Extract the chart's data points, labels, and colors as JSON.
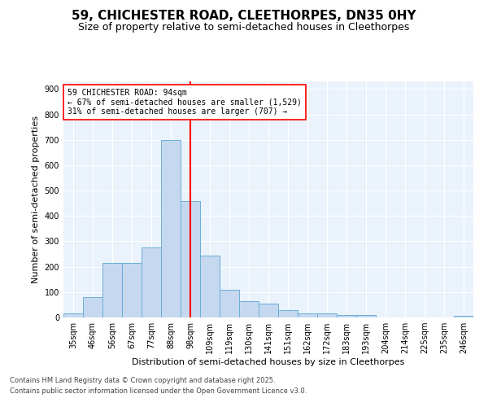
{
  "title1": "59, CHICHESTER ROAD, CLEETHORPES, DN35 0HY",
  "title2": "Size of property relative to semi-detached houses in Cleethorpes",
  "xlabel": "Distribution of semi-detached houses by size in Cleethorpes",
  "ylabel": "Number of semi-detached properties",
  "bin_labels": [
    "35sqm",
    "46sqm",
    "56sqm",
    "67sqm",
    "77sqm",
    "88sqm",
    "98sqm",
    "109sqm",
    "119sqm",
    "130sqm",
    "141sqm",
    "151sqm",
    "162sqm",
    "172sqm",
    "183sqm",
    "193sqm",
    "204sqm",
    "214sqm",
    "225sqm",
    "235sqm",
    "246sqm"
  ],
  "bar_values": [
    15,
    80,
    215,
    215,
    275,
    700,
    460,
    245,
    110,
    65,
    55,
    30,
    15,
    15,
    10,
    10,
    0,
    0,
    0,
    0,
    5
  ],
  "bar_color": "#c5d8f0",
  "bar_edge_color": "#6aaed6",
  "vline_color": "red",
  "vline_pos": 6.0,
  "annotation_title": "59 CHICHESTER ROAD: 94sqm",
  "annotation_line1": "← 67% of semi-detached houses are smaller (1,529)",
  "annotation_line2": "31% of semi-detached houses are larger (707) →",
  "annotation_box_color": "white",
  "annotation_box_edge": "red",
  "ylim": [
    0,
    930
  ],
  "yticks": [
    0,
    100,
    200,
    300,
    400,
    500,
    600,
    700,
    800,
    900
  ],
  "footer1": "Contains HM Land Registry data © Crown copyright and database right 2025.",
  "footer2": "Contains public sector information licensed under the Open Government Licence v3.0.",
  "bg_color": "#eaf3fb",
  "title1_fontsize": 11,
  "title2_fontsize": 9,
  "xlabel_fontsize": 8,
  "ylabel_fontsize": 8,
  "tick_fontsize": 7,
  "annotation_fontsize": 7,
  "footer_fontsize": 6
}
